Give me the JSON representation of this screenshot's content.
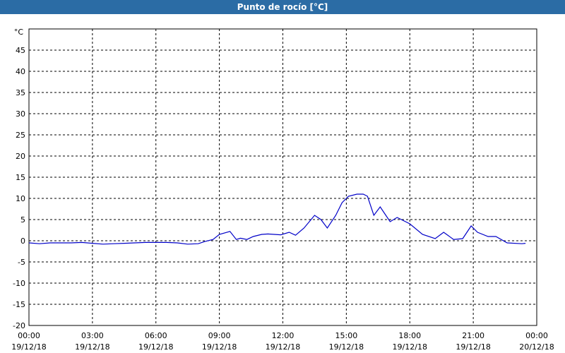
{
  "chart_data": {
    "type": "line",
    "title": "Punto de rocío [°C]",
    "y_label": "°C",
    "x": [
      0,
      0.5,
      1,
      1.5,
      2,
      2.5,
      3,
      3.5,
      4,
      4.5,
      5,
      5.5,
      6,
      6.5,
      7,
      7.5,
      8,
      8.3,
      8.7,
      9.0,
      9.5,
      9.8,
      10.0,
      10.3,
      10.6,
      11.0,
      11.3,
      11.9,
      12.3,
      12.6,
      13.0,
      13.5,
      13.8,
      14.1,
      14.5,
      14.8,
      15.1,
      15.5,
      15.8,
      16.0,
      16.3,
      16.6,
      16.8,
      17.07,
      17.4,
      18.0,
      18.6,
      19.2,
      19.6,
      20.07,
      20.5,
      20.9,
      21.2,
      21.7,
      22.07,
      22.6,
      23.3,
      23.47
    ],
    "series": [
      {
        "name": "Punto de rocío",
        "color": "#0000c8",
        "values": [
          -0.5,
          -0.7,
          -0.5,
          -0.5,
          -0.5,
          -0.4,
          -0.6,
          -0.8,
          -0.7,
          -0.6,
          -0.5,
          -0.4,
          -0.4,
          -0.4,
          -0.5,
          -0.8,
          -0.7,
          -0.2,
          0.3,
          1.5,
          2.2,
          0.3,
          0.6,
          0.3,
          1.0,
          1.5,
          1.6,
          1.4,
          2.0,
          1.3,
          3.0,
          6.0,
          5.0,
          3.0,
          6.0,
          9.0,
          10.5,
          11.0,
          11.0,
          10.5,
          6.0,
          8.0,
          6.5,
          4.5,
          5.5,
          4.0,
          1.5,
          0.5,
          2.0,
          0.3,
          0.5,
          3.5,
          2.0,
          1.0,
          1.0,
          -0.5,
          -0.7,
          -0.6
        ]
      }
    ],
    "xlim": [
      0,
      24
    ],
    "xticks": [
      {
        "value": 0,
        "label": "00:00\n19/12/18"
      },
      {
        "value": 3,
        "label": "03:00\n19/12/18"
      },
      {
        "value": 6,
        "label": "06:00\n19/12/18"
      },
      {
        "value": 9,
        "label": "09:00\n19/12/18"
      },
      {
        "value": 12,
        "label": "12:00\n19/12/18"
      },
      {
        "value": 15,
        "label": "15:00\n19/12/18"
      },
      {
        "value": 18,
        "label": "18:00\n19/12/18"
      },
      {
        "value": 21,
        "label": "21:00\n19/12/18"
      },
      {
        "value": 24,
        "label": "00:00\n20/12/18"
      }
    ],
    "ylim": [
      -20,
      50
    ],
    "yticks": [
      -20,
      -15,
      -10,
      -5,
      0,
      5,
      10,
      15,
      20,
      25,
      30,
      35,
      40,
      45
    ],
    "grid": true
  }
}
